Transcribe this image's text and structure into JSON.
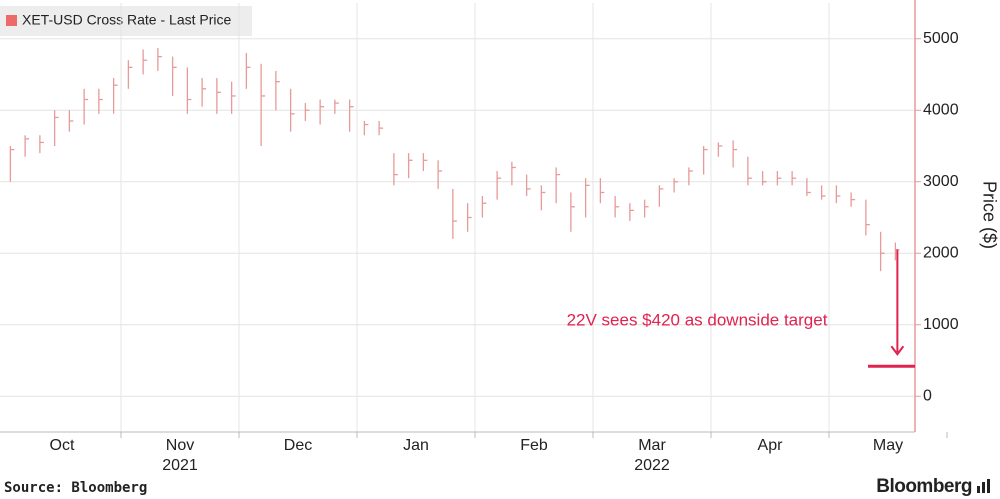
{
  "chart_data": {
    "type": "ohlc",
    "legend_label": "XET-USD Cross Rate - Last Price",
    "y_axis_label": "Price ($)",
    "source": "Source: Bloomberg",
    "brand": "Bloomberg",
    "color": "#e69a9a",
    "ylim": [
      -500,
      5500
    ],
    "yticks": [
      0,
      1000,
      2000,
      3000,
      4000,
      5000
    ],
    "grid": true,
    "months": [
      {
        "label": "Oct",
        "high": [
          3500,
          3650,
          3650,
          4000,
          4000,
          4300,
          4300,
          4450
        ],
        "low": [
          3000,
          3350,
          3400,
          3500,
          3700,
          3800,
          3950,
          3950
        ],
        "close": [
          3450,
          3600,
          3550,
          3900,
          3850,
          4150,
          4150,
          4350
        ]
      },
      {
        "label": "Nov",
        "high": [
          4700,
          4850,
          4870,
          4750,
          4600,
          4450,
          4450,
          4400
        ],
        "low": [
          4300,
          4500,
          4550,
          4200,
          3950,
          4050,
          3950,
          3950
        ],
        "close": [
          4600,
          4700,
          4750,
          4600,
          4150,
          4300,
          4250,
          4200
        ]
      },
      {
        "label": "Dec",
        "high": [
          4800,
          4650,
          4550,
          4300,
          4100,
          4150,
          4150,
          4150
        ],
        "low": [
          4300,
          3500,
          4000,
          3700,
          3850,
          3800,
          3950,
          3700
        ],
        "close": [
          4600,
          4200,
          4400,
          3950,
          4000,
          4050,
          4100,
          4050
        ]
      },
      {
        "label": "Jan",
        "high": [
          3850,
          3850,
          3400,
          3400,
          3400,
          3300,
          2900,
          2700
        ],
        "low": [
          3650,
          3650,
          2950,
          3050,
          3150,
          2900,
          2200,
          2300
        ],
        "close": [
          3800,
          3750,
          3100,
          3300,
          3300,
          3150,
          2450,
          2500
        ]
      },
      {
        "label": "Feb",
        "high": [
          2800,
          3150,
          3280,
          3100,
          2950,
          3200,
          2850,
          3050
        ],
        "low": [
          2500,
          2750,
          2950,
          2800,
          2600,
          2700,
          2300,
          2500
        ],
        "close": [
          2700,
          3050,
          3200,
          2900,
          2850,
          3100,
          2650,
          2950
        ]
      },
      {
        "label": "Mar",
        "high": [
          3050,
          2800,
          2700,
          2750,
          2950,
          3050,
          3200,
          3500
        ],
        "low": [
          2700,
          2500,
          2450,
          2500,
          2650,
          2850,
          2950,
          3100
        ],
        "close": [
          2850,
          2650,
          2600,
          2650,
          2900,
          3000,
          3150,
          3450
        ]
      },
      {
        "label": "Apr",
        "high": [
          3550,
          3580,
          3350,
          3150,
          3150,
          3150,
          3050,
          2950
        ],
        "low": [
          3350,
          3200,
          2950,
          2950,
          2950,
          2950,
          2800,
          2750
        ],
        "close": [
          3500,
          3450,
          3050,
          3000,
          3050,
          3050,
          2850,
          2800
        ]
      },
      {
        "label": "May",
        "high": [
          2950,
          2850,
          2750,
          2300,
          2150
        ],
        "low": [
          2700,
          2650,
          2250,
          1750,
          1900
        ],
        "close": [
          2800,
          2750,
          2400,
          2000,
          2050
        ]
      }
    ],
    "year_labels": [
      "2021",
      "2022"
    ],
    "target": {
      "value": 420,
      "label": "22V sees $420 as downside target",
      "color": "#e0224f"
    }
  }
}
